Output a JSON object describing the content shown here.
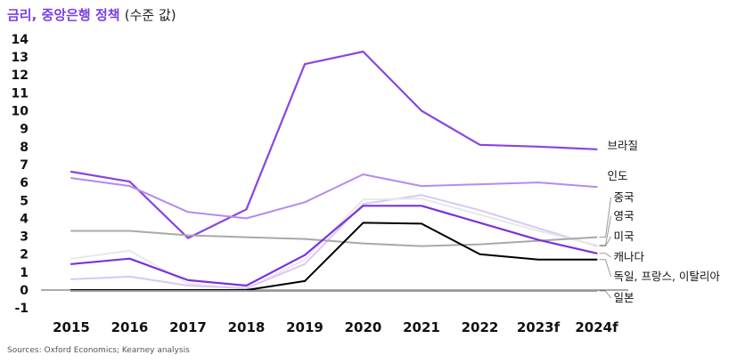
{
  "title": "금리, 중앙은행 정책",
  "title_sub": "(수준 값)",
  "source": "Sources: Oxford Economics; Kearney analysis",
  "chart_data": {
    "type": "line",
    "title": "금리, 중앙은행 정책 (수준 값)",
    "xlabel": "",
    "ylabel": "",
    "ylim": [
      -1,
      14
    ],
    "yticks": [
      -1,
      0,
      1,
      2,
      3,
      4,
      5,
      6,
      7,
      8,
      9,
      10,
      11,
      12,
      13,
      14
    ],
    "categories": [
      "2015",
      "2016",
      "2017",
      "2018",
      "2019",
      "2020",
      "2021",
      "2022",
      "2023f",
      "2024f"
    ],
    "grid": false,
    "legend": "inline labels at right",
    "series": [
      {
        "name": "브라질",
        "color": "#8a44e0",
        "width": 2.2,
        "values": [
          null,
          null,
          null,
          null,
          12.6,
          13.3,
          10,
          8.1,
          8.0,
          7.85
        ]
      },
      {
        "name": "인도",
        "color": "#b58af0",
        "width": 2,
        "values": [
          null,
          null,
          null,
          null,
          4.9,
          6.45,
          5.8,
          5.9,
          6.0,
          5.75
        ]
      },
      {
        "name": "중국",
        "color": "#a8a8a8",
        "width": 2,
        "values": [
          null,
          null,
          null,
          null,
          2.85,
          2.6,
          2.45,
          2.55,
          2.75,
          2.95
        ]
      },
      {
        "name": "영국",
        "color": "#e8e8e8",
        "width": 2,
        "values": [
          null,
          null,
          null,
          null,
          1.7,
          5.05,
          5.1,
          4.2,
          3.3,
          2.5
        ]
      },
      {
        "name": "미국",
        "color": "#d9c7f5",
        "width": 2,
        "values": [
          null,
          null,
          null,
          null,
          1.45,
          4.8,
          5.3,
          4.45,
          3.45,
          2.45
        ]
      },
      {
        "name": "캐나다",
        "color": "#7a32d8",
        "width": 2.2,
        "values": [
          null,
          null,
          null,
          null,
          1.95,
          4.7,
          4.7,
          3.75,
          2.8,
          2.05
        ]
      },
      {
        "name": "독일, 프랑스, 이탈리아",
        "color": "#000000",
        "width": 2,
        "values": [
          null,
          null,
          null,
          null,
          0.5,
          3.75,
          3.7,
          2.0,
          1.7,
          1.7
        ]
      },
      {
        "name": "일본",
        "color": "#9a9a9a",
        "width": 2,
        "values": [
          null,
          null,
          null,
          null,
          -0.05,
          -0.05,
          -0.05,
          -0.05,
          -0.05,
          -0.05
        ]
      }
    ],
    "extra_lines": [
      {
        "color": "#8a44e0",
        "width": 2.2,
        "values": [
          6.6,
          6.05,
          2.9,
          4.5,
          12.6
        ]
      },
      {
        "color": "#b58af0",
        "width": 2,
        "values": [
          6.25,
          5.8,
          4.35,
          4.0,
          4.9
        ]
      },
      {
        "color": "#a8a8a8",
        "width": 2,
        "values": [
          3.3,
          3.3,
          3.05,
          2.95,
          2.85
        ]
      },
      {
        "color": "#e8e8e8",
        "width": 2,
        "values": [
          1.75,
          2.2,
          0.35,
          0.05,
          1.7
        ]
      },
      {
        "color": "#d9c7f5",
        "width": 2,
        "values": [
          0.6,
          0.75,
          0.25,
          0.1,
          1.45
        ]
      },
      {
        "color": "#7a32d8",
        "width": 2.2,
        "values": [
          1.45,
          1.75,
          0.55,
          0.25,
          1.95
        ]
      },
      {
        "color": "#000000",
        "width": 2,
        "values": [
          0.0,
          0.0,
          0.0,
          0.0,
          0.5
        ]
      },
      {
        "color": "#9a9a9a",
        "width": 2,
        "values": [
          -0.05,
          -0.05,
          -0.05,
          -0.05,
          -0.05
        ]
      }
    ]
  }
}
